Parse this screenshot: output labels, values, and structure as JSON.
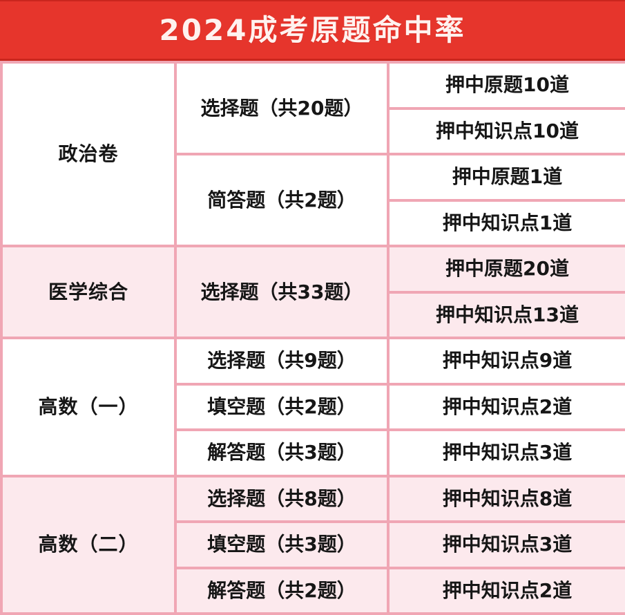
{
  "header": {
    "title": "2024成考原题命中率"
  },
  "table": {
    "sections": [
      {
        "subject": "政治卷",
        "tone": "white",
        "groups": [
          {
            "question_type": "选择题（共20题）",
            "results": [
              "押中原题10道",
              "押中知识点10道"
            ]
          },
          {
            "question_type": "简答题（共2题）",
            "results": [
              "押中原题1道",
              "押中知识点1道"
            ]
          }
        ]
      },
      {
        "subject": "医学综合",
        "tone": "pink",
        "groups": [
          {
            "question_type": "选择题（共33题）",
            "results": [
              "押中原题20道",
              "押中知识点13道"
            ]
          }
        ]
      },
      {
        "subject": "高数（一）",
        "tone": "white",
        "groups": [
          {
            "question_type": "选择题（共9题）",
            "results": [
              "押中知识点9道"
            ]
          },
          {
            "question_type": "填空题（共2题）",
            "results": [
              "押中知识点2道"
            ]
          },
          {
            "question_type": "解答题（共3题）",
            "results": [
              "押中知识点3道"
            ]
          }
        ]
      },
      {
        "subject": "高数（二）",
        "tone": "pink",
        "groups": [
          {
            "question_type": "选择题（共8题）",
            "results": [
              "押中知识点8道"
            ]
          },
          {
            "question_type": "填空题（共3题）",
            "results": [
              "押中知识点3道"
            ]
          },
          {
            "question_type": "解答题（共2题）",
            "results": [
              "押中知识点2道"
            ]
          }
        ]
      }
    ]
  },
  "chart_data": {
    "type": "table",
    "title": "2024成考原题命中率",
    "rows": [
      [
        "政治卷",
        "选择题（共20题）",
        "押中原题10道"
      ],
      [
        "政治卷",
        "选择题（共20题）",
        "押中知识点10道"
      ],
      [
        "政治卷",
        "简答题（共2题）",
        "押中原题1道"
      ],
      [
        "政治卷",
        "简答题（共2题）",
        "押中知识点1道"
      ],
      [
        "医学综合",
        "选择题（共33题）",
        "押中原题20道"
      ],
      [
        "医学综合",
        "选择题（共33题）",
        "押中知识点13道"
      ],
      [
        "高数（一）",
        "选择题（共9题）",
        "押中知识点9道"
      ],
      [
        "高数（一）",
        "填空题（共2题）",
        "押中知识点2道"
      ],
      [
        "高数（一）",
        "解答题（共3题）",
        "押中知识点3道"
      ],
      [
        "高数（二）",
        "选择题（共8题）",
        "押中知识点8道"
      ],
      [
        "高数（二）",
        "填空题（共3题）",
        "押中知识点3道"
      ],
      [
        "高数（二）",
        "解答题（共2题）",
        "押中知识点2道"
      ]
    ]
  },
  "colors": {
    "header_bg": "#e6352c",
    "header_edge": "#c9261e",
    "header_text": "#fff2ef",
    "border_pink": "#f0a6b4",
    "pink_bg": "#fce9ed",
    "white_bg": "#ffffff",
    "subject_text": "#dc3a41",
    "body_text": "#161616"
  }
}
